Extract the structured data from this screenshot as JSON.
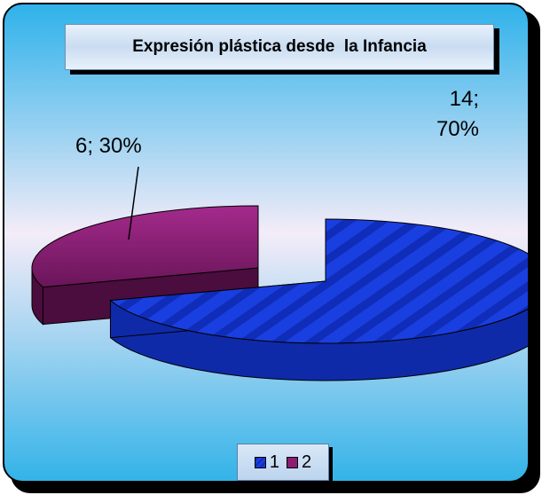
{
  "chart_data": {
    "type": "pie",
    "title": "Expresión plástica desde  la Infancia",
    "categories": [
      "1",
      "2"
    ],
    "values": [
      14,
      6
    ],
    "percentages": [
      "70%",
      "30%"
    ],
    "data_labels": [
      "14;\n70%",
      "6; 30%"
    ],
    "legend": [
      "1",
      "2"
    ],
    "legend_position": "bottom",
    "three_d": true,
    "colors": [
      "#1a3fe0",
      "#8b1e73"
    ]
  }
}
